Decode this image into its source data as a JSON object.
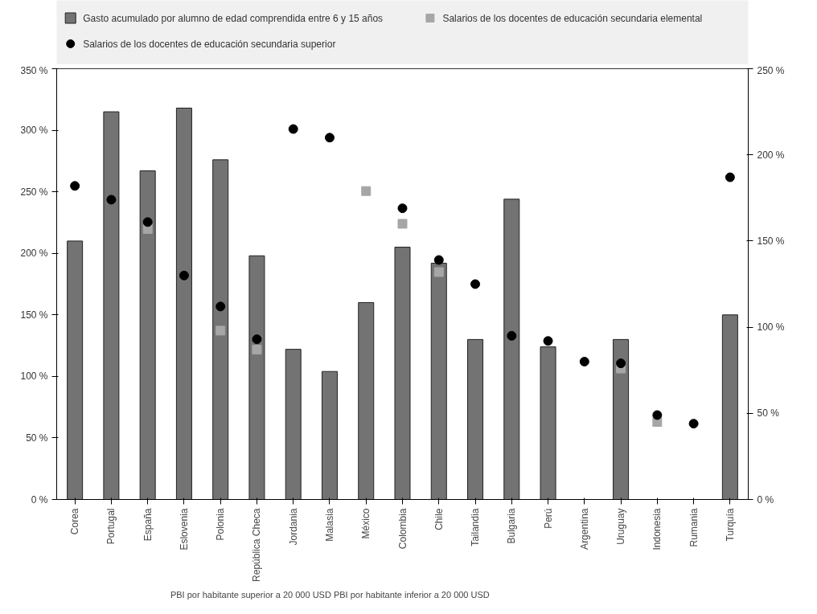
{
  "chart_data": {
    "type": "bar",
    "categories": [
      "Corea",
      "Portugal",
      "España",
      "Eslovenia",
      "Polonia",
      "República Checa",
      "Jordania",
      "Malasia",
      "México",
      "Colombia",
      "Chile",
      "Tailandia",
      "Bulgaria",
      "Perú",
      "Argentina",
      "Uruguay",
      "Indonesia",
      "Rumania",
      "Turquía"
    ],
    "series": [
      {
        "name": "Gasto acumulado por alumno de edad comprendida entre 6 y 15 años",
        "color": "#737373",
        "values": [
          210,
          315,
          267,
          318,
          276,
          198,
          122,
          104,
          160,
          205,
          192,
          130,
          244,
          124,
          null,
          130,
          null,
          null,
          150
        ]
      },
      {
        "name": "Salarios de los docentes de educación secundaria elemental",
        "type": "scatter",
        "marker": "square",
        "axis": "y2",
        "color": "#a6a6a6",
        "values": [
          null,
          null,
          157,
          null,
          98,
          87,
          null,
          null,
          179,
          160,
          132,
          null,
          null,
          null,
          null,
          76,
          45,
          null,
          null
        ]
      },
      {
        "name": "Salarios de los docentes de educación secundaria superior",
        "type": "scatter",
        "marker": "circle",
        "axis": "y2",
        "color": "#000000",
        "values": [
          182,
          174,
          161,
          130,
          112,
          93,
          215,
          210,
          null,
          169,
          139,
          125,
          95,
          92,
          80,
          79,
          49,
          44,
          187
        ]
      }
    ],
    "ylim": [
      0,
      350
    ],
    "yticks": [
      {
        "value": 0,
        "label": "0 %"
      },
      {
        "value": 50,
        "label": "50 %"
      },
      {
        "value": 100,
        "label": "100 %"
      },
      {
        "value": 150,
        "label": "150 %"
      },
      {
        "value": 200,
        "label": "200 %"
      },
      {
        "value": 250,
        "label": "250 %"
      },
      {
        "value": 300,
        "label": "300 %"
      },
      {
        "value": 350,
        "label": "350 %"
      }
    ],
    "y2lim": [
      0,
      250
    ],
    "y2ticks": [
      {
        "value": 0,
        "label": "0 %"
      },
      {
        "value": 50,
        "label": "50 %"
      },
      {
        "value": 100,
        "label": "100 %"
      },
      {
        "value": 150,
        "label": "150 %"
      },
      {
        "value": 200,
        "label": "200 %"
      },
      {
        "value": 250,
        "label": "250 %"
      }
    ],
    "annotations": [
      "PBI por habitante superior a 20 000 USD",
      "PBI por habitante inferior a 20 000 USD"
    ],
    "legend": "top",
    "grid": false
  }
}
